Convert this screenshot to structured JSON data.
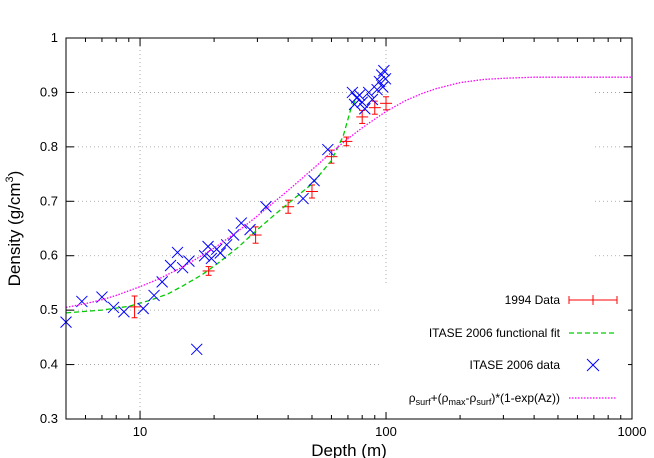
{
  "chart_data": {
    "type": "scatter",
    "x_scale": "log",
    "xlim": [
      5,
      1000
    ],
    "ylim": [
      0.3,
      1.0
    ],
    "xlabel": "Depth (m)",
    "ylabel": "Density (g/cm",
    "ylabel_superscript": "3",
    "ylabel_suffix": ")",
    "x_ticks": [
      10,
      100,
      1000
    ],
    "x_tick_labels": [
      "10",
      "100",
      "1000"
    ],
    "y_ticks": [
      0.3,
      0.4,
      0.5,
      0.6,
      0.7,
      0.8,
      0.9,
      1.0
    ],
    "y_tick_labels": [
      "0.3",
      "0.4",
      "0.5",
      "0.6",
      "0.7",
      "0.8",
      "0.9",
      "1"
    ],
    "grid": "dotted at major ticks",
    "legend_position": "bottom-right",
    "series": [
      {
        "name": "1994 Data",
        "style": "errorbar",
        "color": "#ff0000",
        "points": [
          {
            "x": 9.5,
            "y": 0.506,
            "yerr": 0.02
          },
          {
            "x": 19.0,
            "y": 0.572,
            "yerr": 0.008
          },
          {
            "x": 29.5,
            "y": 0.638,
            "yerr": 0.015
          },
          {
            "x": 40.0,
            "y": 0.69,
            "yerr": 0.012
          },
          {
            "x": 50.0,
            "y": 0.718,
            "yerr": 0.012
          },
          {
            "x": 60.0,
            "y": 0.782,
            "yerr": 0.012
          },
          {
            "x": 69.0,
            "y": 0.81,
            "yerr": 0.008
          },
          {
            "x": 80.0,
            "y": 0.855,
            "yerr": 0.012
          },
          {
            "x": 90.0,
            "y": 0.872,
            "yerr": 0.012
          },
          {
            "x": 100.0,
            "y": 0.88,
            "yerr": 0.012
          }
        ]
      },
      {
        "name": "ITASE 2006 functional fit",
        "style": "dashed-line",
        "color": "#00cc00",
        "points": [
          {
            "x": 5,
            "y": 0.495
          },
          {
            "x": 7,
            "y": 0.5
          },
          {
            "x": 9,
            "y": 0.507
          },
          {
            "x": 11,
            "y": 0.518
          },
          {
            "x": 13,
            "y": 0.53
          },
          {
            "x": 15,
            "y": 0.545
          },
          {
            "x": 18,
            "y": 0.566
          },
          {
            "x": 21,
            "y": 0.588
          },
          {
            "x": 25,
            "y": 0.615
          },
          {
            "x": 30,
            "y": 0.648
          },
          {
            "x": 35,
            "y": 0.674
          },
          {
            "x": 40,
            "y": 0.696
          },
          {
            "x": 50,
            "y": 0.732
          },
          {
            "x": 60,
            "y": 0.775
          },
          {
            "x": 67,
            "y": 0.82
          },
          {
            "x": 72,
            "y": 0.87
          },
          {
            "x": 75,
            "y": 0.885
          }
        ]
      },
      {
        "name": "ITASE 2006 data",
        "style": "x-marker",
        "color": "#0000ff",
        "points": [
          {
            "x": 5.0,
            "y": 0.478
          },
          {
            "x": 5.8,
            "y": 0.516
          },
          {
            "x": 7.0,
            "y": 0.524
          },
          {
            "x": 7.8,
            "y": 0.505
          },
          {
            "x": 8.6,
            "y": 0.497
          },
          {
            "x": 10.3,
            "y": 0.503
          },
          {
            "x": 11.4,
            "y": 0.527
          },
          {
            "x": 12.3,
            "y": 0.552
          },
          {
            "x": 13.3,
            "y": 0.582
          },
          {
            "x": 14.2,
            "y": 0.606
          },
          {
            "x": 14.9,
            "y": 0.578
          },
          {
            "x": 15.8,
            "y": 0.59
          },
          {
            "x": 17.0,
            "y": 0.428
          },
          {
            "x": 18.3,
            "y": 0.6
          },
          {
            "x": 18.9,
            "y": 0.617
          },
          {
            "x": 19.5,
            "y": 0.595
          },
          {
            "x": 20.5,
            "y": 0.612
          },
          {
            "x": 21.2,
            "y": 0.605
          },
          {
            "x": 22.5,
            "y": 0.62
          },
          {
            "x": 24.0,
            "y": 0.638
          },
          {
            "x": 25.8,
            "y": 0.66
          },
          {
            "x": 28.0,
            "y": 0.648
          },
          {
            "x": 32.5,
            "y": 0.69
          },
          {
            "x": 46.0,
            "y": 0.705
          },
          {
            "x": 51.0,
            "y": 0.738
          },
          {
            "x": 58.0,
            "y": 0.795
          },
          {
            "x": 73.0,
            "y": 0.9
          },
          {
            "x": 74.5,
            "y": 0.878
          },
          {
            "x": 76.0,
            "y": 0.89
          },
          {
            "x": 78.0,
            "y": 0.895
          },
          {
            "x": 80.0,
            "y": 0.882
          },
          {
            "x": 82.0,
            "y": 0.87
          },
          {
            "x": 85.0,
            "y": 0.9
          },
          {
            "x": 88.0,
            "y": 0.887
          },
          {
            "x": 92.0,
            "y": 0.905
          },
          {
            "x": 94.0,
            "y": 0.92
          },
          {
            "x": 96.0,
            "y": 0.932
          },
          {
            "x": 97.0,
            "y": 0.91
          },
          {
            "x": 98.0,
            "y": 0.94
          },
          {
            "x": 99.5,
            "y": 0.925
          }
        ]
      },
      {
        "name": "ρsurf+(ρmax-ρsurf)*(1-exp(Az))",
        "style": "dotted-line",
        "color": "#ff00ff",
        "points": [
          {
            "x": 5,
            "y": 0.505
          },
          {
            "x": 6,
            "y": 0.512
          },
          {
            "x": 7,
            "y": 0.519
          },
          {
            "x": 8,
            "y": 0.527
          },
          {
            "x": 10,
            "y": 0.543
          },
          {
            "x": 12,
            "y": 0.558
          },
          {
            "x": 15,
            "y": 0.58
          },
          {
            "x": 20,
            "y": 0.614
          },
          {
            "x": 25,
            "y": 0.645
          },
          {
            "x": 30,
            "y": 0.673
          },
          {
            "x": 40,
            "y": 0.72
          },
          {
            "x": 50,
            "y": 0.758
          },
          {
            "x": 60,
            "y": 0.79
          },
          {
            "x": 70,
            "y": 0.815
          },
          {
            "x": 80,
            "y": 0.835
          },
          {
            "x": 90,
            "y": 0.851
          },
          {
            "x": 100,
            "y": 0.865
          },
          {
            "x": 120,
            "y": 0.885
          },
          {
            "x": 140,
            "y": 0.898
          },
          {
            "x": 160,
            "y": 0.907
          },
          {
            "x": 200,
            "y": 0.918
          },
          {
            "x": 250,
            "y": 0.924
          },
          {
            "x": 300,
            "y": 0.926
          },
          {
            "x": 400,
            "y": 0.928
          },
          {
            "x": 600,
            "y": 0.928
          },
          {
            "x": 1000,
            "y": 0.928
          }
        ]
      }
    ],
    "legend": {
      "entries": [
        {
          "label": "1994 Data"
        },
        {
          "label": "ITASE 2006 functional fit"
        },
        {
          "label": "ITASE 2006 data"
        },
        {
          "label_parts": [
            "ρ",
            "surf",
            "+(ρ",
            "max",
            "-ρ",
            "surf",
            ")*(1-exp(Az))"
          ]
        }
      ]
    }
  }
}
